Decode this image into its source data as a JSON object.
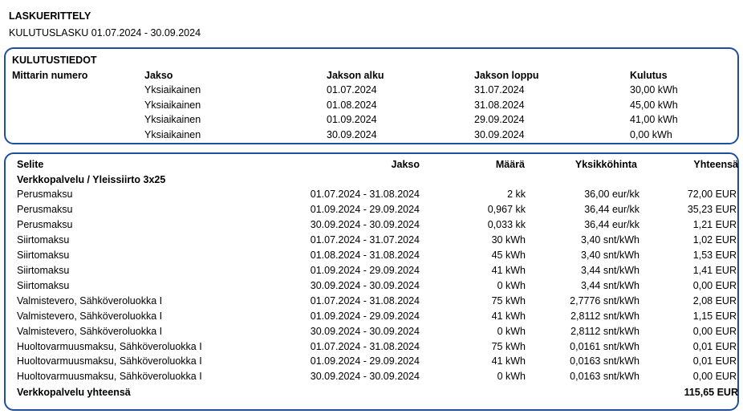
{
  "header": {
    "title": "LASKUERITTELY",
    "subtitle": "KULUTUSLASKU 01.07.2024 - 30.09.2024"
  },
  "usage": {
    "section_title": "KULUTUSTIEDOT",
    "columns": {
      "meter": "Mittarin numero",
      "period": "Jakso",
      "start": "Jakson alku",
      "end": "Jakson loppu",
      "consumption": "Kulutus"
    },
    "rows": [
      {
        "period": "Yksiaikainen",
        "start": "01.07.2024",
        "end": "31.07.2024",
        "consumption": "30,00 kWh"
      },
      {
        "period": "Yksiaikainen",
        "start": "01.08.2024",
        "end": "31.08.2024",
        "consumption": "45,00 kWh"
      },
      {
        "period": "Yksiaikainen",
        "start": "01.09.2024",
        "end": "29.09.2024",
        "consumption": "41,00 kWh"
      },
      {
        "period": "Yksiaikainen",
        "start": "30.09.2024",
        "end": "30.09.2024",
        "consumption": "0,00 kWh"
      }
    ]
  },
  "lines": {
    "columns": {
      "description": "Selite",
      "period": "Jakso",
      "quantity": "Määrä",
      "unit_price": "Yksikköhinta",
      "total": "Yhteensä"
    },
    "group_title": "Verkkopalvelu / Yleissiirto 3x25",
    "rows": [
      {
        "description": "Perusmaksu",
        "period": "01.07.2024 - 31.08.2024",
        "quantity": "2 kk",
        "unit_price": "36,00 eur/kk",
        "total": "72,00 EUR"
      },
      {
        "description": "Perusmaksu",
        "period": "01.09.2024 - 29.09.2024",
        "quantity": "0,967 kk",
        "unit_price": "36,44 eur/kk",
        "total": "35,23 EUR"
      },
      {
        "description": "Perusmaksu",
        "period": "30.09.2024 - 30.09.2024",
        "quantity": "0,033 kk",
        "unit_price": "36,44 eur/kk",
        "total": "1,21 EUR"
      },
      {
        "description": "Siirtomaksu",
        "period": "01.07.2024 - 31.07.2024",
        "quantity": "30 kWh",
        "unit_price": "3,40 snt/kWh",
        "total": "1,02 EUR"
      },
      {
        "description": "Siirtomaksu",
        "period": "01.08.2024 - 31.08.2024",
        "quantity": "45 kWh",
        "unit_price": "3,40 snt/kWh",
        "total": "1,53 EUR"
      },
      {
        "description": "Siirtomaksu",
        "period": "01.09.2024 - 29.09.2024",
        "quantity": "41 kWh",
        "unit_price": "3,44 snt/kWh",
        "total": "1,41 EUR"
      },
      {
        "description": "Siirtomaksu",
        "period": "30.09.2024 - 30.09.2024",
        "quantity": "0 kWh",
        "unit_price": "3,44 snt/kWh",
        "total": "0,00 EUR"
      },
      {
        "description": "Valmistevero, Sähköveroluokka I",
        "period": "01.07.2024 - 31.08.2024",
        "quantity": "75 kWh",
        "unit_price": "2,7776 snt/kWh",
        "total": "2,08 EUR"
      },
      {
        "description": "Valmistevero, Sähköveroluokka I",
        "period": "01.09.2024 - 29.09.2024",
        "quantity": "41 kWh",
        "unit_price": "2,8112 snt/kWh",
        "total": "1,15 EUR"
      },
      {
        "description": "Valmistevero, Sähköveroluokka I",
        "period": "30.09.2024 - 30.09.2024",
        "quantity": "0 kWh",
        "unit_price": "2,8112 snt/kWh",
        "total": "0,00 EUR"
      },
      {
        "description": "Huoltovarmuusmaksu, Sähköveroluokka I",
        "period": "01.07.2024 - 31.08.2024",
        "quantity": "75 kWh",
        "unit_price": "0,0161 snt/kWh",
        "total": "0,01 EUR"
      },
      {
        "description": "Huoltovarmuusmaksu, Sähköveroluokka I",
        "period": "01.09.2024 - 29.09.2024",
        "quantity": "41 kWh",
        "unit_price": "0,0163 snt/kWh",
        "total": "0,01 EUR"
      },
      {
        "description": "Huoltovarmuusmaksu, Sähköveroluokka I",
        "period": "30.09.2024 - 30.09.2024",
        "quantity": "0 kWh",
        "unit_price": "0,0163 snt/kWh",
        "total": "0,00 EUR"
      }
    ],
    "summary": {
      "label": "Verkkopalvelu yhteensä",
      "total": "115,65 EUR"
    }
  },
  "colors": {
    "border": "#1f4e9e",
    "text": "#000000"
  }
}
